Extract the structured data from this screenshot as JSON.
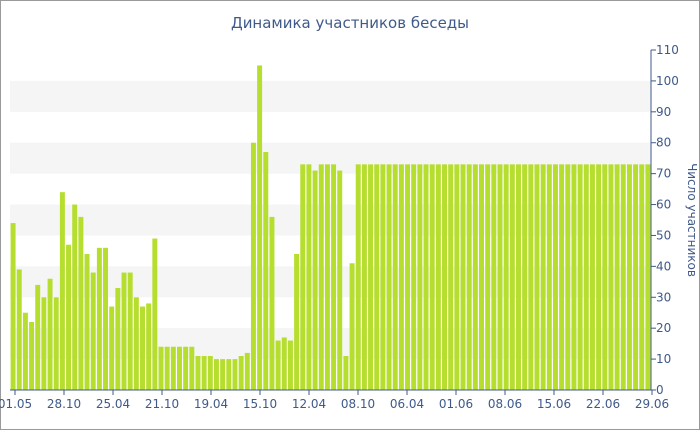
{
  "chart_data": {
    "type": "bar",
    "title": "Динамика участников беседы",
    "xlabel": "",
    "ylabel": "Число участников",
    "ylim": [
      0,
      110
    ],
    "yticks": [
      0,
      10,
      20,
      30,
      40,
      50,
      60,
      70,
      80,
      90,
      100,
      110
    ],
    "xticks": [
      "01.05",
      "28.10",
      "25.04",
      "21.10",
      "19.04",
      "15.10",
      "12.04",
      "08.10",
      "06.04",
      "01.06",
      "08.06",
      "15.06",
      "22.06",
      "29.06"
    ],
    "grid": "alternating horizontal bands",
    "bar_color": "#b5de2e",
    "band_color": "#f5f5f5",
    "values": [
      54,
      39,
      25,
      22,
      34,
      30,
      36,
      30,
      64,
      47,
      60,
      56,
      44,
      38,
      46,
      46,
      27,
      33,
      38,
      38,
      30,
      27,
      28,
      49,
      14,
      14,
      14,
      14,
      14,
      14,
      11,
      11,
      11,
      10,
      10,
      10,
      10,
      11,
      12,
      80,
      105,
      77,
      56,
      16,
      17,
      16,
      44,
      73,
      73,
      71,
      73,
      73,
      73,
      71,
      11,
      41,
      73,
      73,
      73,
      73,
      73,
      73,
      73,
      73,
      73,
      73,
      73,
      73,
      73,
      73,
      73,
      73,
      73,
      73,
      73,
      73,
      73,
      73,
      73,
      73,
      73,
      73,
      73,
      73,
      73,
      73,
      73,
      73,
      73,
      73,
      73,
      73,
      73,
      73,
      73,
      73,
      73,
      73,
      73,
      73,
      73,
      73,
      73,
      73
    ]
  }
}
